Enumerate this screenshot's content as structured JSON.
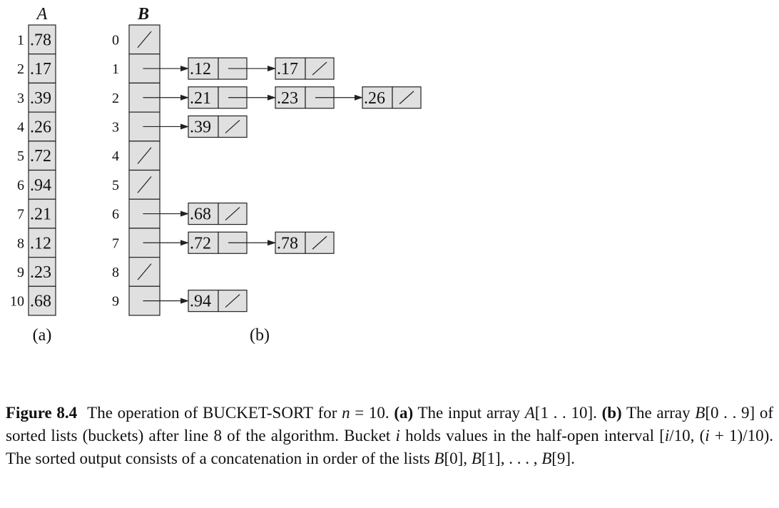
{
  "figure": {
    "array_a": {
      "name": "A",
      "indices": [
        "1",
        "2",
        "3",
        "4",
        "5",
        "6",
        "7",
        "8",
        "9",
        "10"
      ],
      "values": [
        ".78",
        ".17",
        ".39",
        ".26",
        ".72",
        ".94",
        ".21",
        ".12",
        ".23",
        ".68"
      ],
      "sublabel": "(a)"
    },
    "array_b": {
      "name": "B",
      "indices": [
        "0",
        "1",
        "2",
        "3",
        "4",
        "5",
        "6",
        "7",
        "8",
        "9"
      ],
      "buckets": [
        [],
        [
          ".12",
          ".17"
        ],
        [
          ".21",
          ".23",
          ".26"
        ],
        [
          ".39"
        ],
        [],
        [],
        [
          ".68"
        ],
        [
          ".72",
          ".78"
        ],
        [],
        [
          ".94"
        ]
      ],
      "sublabel": "(b)"
    },
    "nil_symbol": "/"
  },
  "caption": {
    "label": "Figure 8.4",
    "t1": "The operation of ",
    "algo_B": "B",
    "algo_ucket": "UCKET",
    "algo_dash": "-",
    "algo_S": "S",
    "algo_ort": "ORT",
    "t2": " for ",
    "var_n": "n",
    "t3": " = 10. ",
    "part_a": "(a)",
    "t4": " The input array ",
    "var_A": "A",
    "t5": "[1 . . 10]. ",
    "part_b": "(b)",
    "t6": " The array ",
    "var_B1": "B",
    "t7": "[0 . . 9] of sorted lists (buckets) after line 8 of the algorithm. Bucket ",
    "var_i1": "i",
    "t8": " holds values in the half-open interval [",
    "var_i2": "i",
    "t9": "/10, (",
    "var_i3": "i",
    "t10": " + 1)/10). The sorted output consists of a concatenation in order of the lists ",
    "var_B2": "B",
    "t11": "[0], ",
    "var_B3": "B",
    "t12": "[1], . . . , ",
    "var_B4": "B",
    "t13": "[9]."
  }
}
